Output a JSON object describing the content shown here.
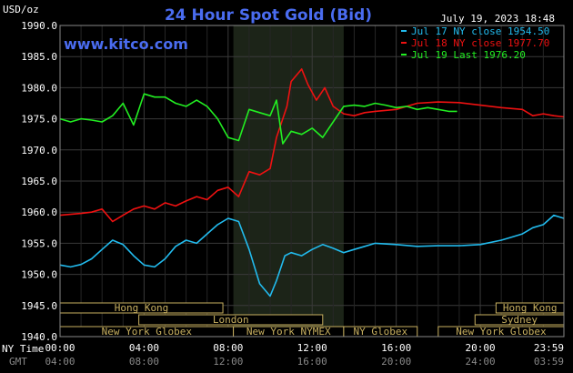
{
  "chart_data": {
    "type": "line",
    "title": "24 Hour Spot Gold (Bid)",
    "site": "www.kitco.com",
    "timestamp": "July 19, 2023 18:48",
    "ylabel": "USD/oz",
    "ylim": [
      1940.0,
      1990.0
    ],
    "yticks": [
      "1990.0",
      "1985.0",
      "1980.0",
      "1975.0",
      "1970.0",
      "1965.0",
      "1960.0",
      "1955.0",
      "1950.0",
      "1945.0",
      "1940.0"
    ],
    "x_axis_label": "NY Time",
    "x_axis2_label": "GMT",
    "xticks_ny": [
      "00:00",
      "04:00",
      "08:00",
      "12:00",
      "16:00",
      "20:00",
      "23:59"
    ],
    "xticks_gmt": [
      "04:00",
      "08:00",
      "12:00",
      "16:00",
      "20:00",
      "24:00",
      "03:59"
    ],
    "grid": true,
    "legend_position": "top-right",
    "colors": {
      "jul17": "#22bbee",
      "jul18": "#ee1111",
      "jul19": "#22ee22",
      "title": "#4a6cf0",
      "site": "#4a6cf0",
      "session": "#c8b060",
      "highlight": "#1c2418"
    },
    "series": [
      {
        "name": "Jul 17 NY close 1954.50",
        "color": "#22bbee",
        "points": [
          [
            0,
            1951.5
          ],
          [
            0.5,
            1951.2
          ],
          [
            1,
            1951.6
          ],
          [
            1.5,
            1952.5
          ],
          [
            2,
            1954.0
          ],
          [
            2.5,
            1955.5
          ],
          [
            3,
            1954.8
          ],
          [
            3.5,
            1953.0
          ],
          [
            4,
            1951.5
          ],
          [
            4.5,
            1951.2
          ],
          [
            5,
            1952.5
          ],
          [
            5.5,
            1954.5
          ],
          [
            6,
            1955.5
          ],
          [
            6.5,
            1955.0
          ],
          [
            7,
            1956.5
          ],
          [
            7.5,
            1958.0
          ],
          [
            8,
            1959.0
          ],
          [
            8.5,
            1958.5
          ],
          [
            9,
            1954.0
          ],
          [
            9.5,
            1948.5
          ],
          [
            10,
            1946.5
          ],
          [
            10.3,
            1949.0
          ],
          [
            10.7,
            1953.0
          ],
          [
            11,
            1953.5
          ],
          [
            11.5,
            1953.0
          ],
          [
            12,
            1954.0
          ],
          [
            12.5,
            1954.8
          ],
          [
            13,
            1954.2
          ],
          [
            13.5,
            1953.5
          ],
          [
            14,
            1954.0
          ],
          [
            14.5,
            1954.5
          ],
          [
            15,
            1955.0
          ],
          [
            16,
            1954.8
          ],
          [
            17,
            1954.5
          ],
          [
            18,
            1954.6
          ],
          [
            19,
            1954.6
          ],
          [
            20,
            1954.8
          ],
          [
            21,
            1955.5
          ],
          [
            21.5,
            1956.0
          ],
          [
            22,
            1956.5
          ],
          [
            22.5,
            1957.5
          ],
          [
            23,
            1958.0
          ],
          [
            23.5,
            1959.5
          ],
          [
            23.98,
            1959.0
          ]
        ]
      },
      {
        "name": "Jul 18 NY close 1977.70",
        "color": "#ee1111",
        "points": [
          [
            0,
            1959.5
          ],
          [
            1,
            1959.8
          ],
          [
            1.5,
            1960.0
          ],
          [
            2,
            1960.5
          ],
          [
            2.5,
            1958.5
          ],
          [
            3,
            1959.5
          ],
          [
            3.5,
            1960.5
          ],
          [
            4,
            1961.0
          ],
          [
            4.5,
            1960.5
          ],
          [
            5,
            1961.5
          ],
          [
            5.5,
            1961.0
          ],
          [
            6,
            1961.8
          ],
          [
            6.5,
            1962.5
          ],
          [
            7,
            1962.0
          ],
          [
            7.5,
            1963.5
          ],
          [
            8,
            1964.0
          ],
          [
            8.5,
            1962.5
          ],
          [
            9,
            1966.5
          ],
          [
            9.5,
            1966.0
          ],
          [
            10,
            1967.0
          ],
          [
            10.3,
            1972.0
          ],
          [
            10.8,
            1977.0
          ],
          [
            11,
            1981.0
          ],
          [
            11.5,
            1983.0
          ],
          [
            11.8,
            1980.5
          ],
          [
            12.2,
            1978.0
          ],
          [
            12.6,
            1980.0
          ],
          [
            13,
            1977.0
          ],
          [
            13.5,
            1975.8
          ],
          [
            14,
            1975.5
          ],
          [
            14.5,
            1976.0
          ],
          [
            15,
            1976.2
          ],
          [
            16,
            1976.5
          ],
          [
            17,
            1977.5
          ],
          [
            18,
            1977.7
          ],
          [
            19,
            1977.6
          ],
          [
            20,
            1977.2
          ],
          [
            21,
            1976.8
          ],
          [
            22,
            1976.5
          ],
          [
            22.5,
            1975.5
          ],
          [
            23,
            1975.8
          ],
          [
            23.5,
            1975.5
          ],
          [
            23.98,
            1975.3
          ]
        ]
      },
      {
        "name": "Jul 19 Last 1976.20",
        "color": "#22ee22",
        "points": [
          [
            0,
            1975.0
          ],
          [
            0.5,
            1974.5
          ],
          [
            1,
            1975.0
          ],
          [
            1.5,
            1974.8
          ],
          [
            2,
            1974.5
          ],
          [
            2.5,
            1975.5
          ],
          [
            3,
            1977.5
          ],
          [
            3.5,
            1974.0
          ],
          [
            4,
            1979.0
          ],
          [
            4.5,
            1978.5
          ],
          [
            5,
            1978.5
          ],
          [
            5.5,
            1977.5
          ],
          [
            6,
            1977.0
          ],
          [
            6.5,
            1978.0
          ],
          [
            7,
            1977.0
          ],
          [
            7.5,
            1975.0
          ],
          [
            8,
            1972.0
          ],
          [
            8.5,
            1971.5
          ],
          [
            9,
            1976.5
          ],
          [
            9.5,
            1976.0
          ],
          [
            10,
            1975.5
          ],
          [
            10.3,
            1978.0
          ],
          [
            10.6,
            1971.0
          ],
          [
            11,
            1973.0
          ],
          [
            11.5,
            1972.5
          ],
          [
            12,
            1973.5
          ],
          [
            12.5,
            1972.0
          ],
          [
            13,
            1974.5
          ],
          [
            13.5,
            1977.0
          ],
          [
            14,
            1977.2
          ],
          [
            14.5,
            1977.0
          ],
          [
            15,
            1977.5
          ],
          [
            15.5,
            1977.2
          ],
          [
            16,
            1976.8
          ],
          [
            16.5,
            1977.0
          ],
          [
            17,
            1976.5
          ],
          [
            17.5,
            1976.8
          ],
          [
            18,
            1976.5
          ],
          [
            18.5,
            1976.2
          ],
          [
            18.9,
            1976.2
          ]
        ]
      }
    ],
    "sessions": [
      {
        "name": "Hong Kong",
        "start": 0,
        "end": 7.75,
        "row": 0
      },
      {
        "name": "Hong Kong",
        "start": 20.75,
        "end": 23.98,
        "row": 0
      },
      {
        "name": "London",
        "start": 3.75,
        "end": 12.5,
        "row": 1
      },
      {
        "name": "Sydney",
        "start": 19.75,
        "end": 23.98,
        "row": 1
      },
      {
        "name": "New York Globex",
        "start": 0,
        "end": 8.25,
        "row": 2
      },
      {
        "name": "New York NYMEX",
        "start": 8.25,
        "end": 13.5,
        "row": 2
      },
      {
        "name": "NY Globex",
        "start": 13.5,
        "end": 17.0,
        "row": 2
      },
      {
        "name": "New York Globex",
        "start": 18.0,
        "end": 23.98,
        "row": 2
      }
    ],
    "highlight_range": [
      8.25,
      13.5
    ]
  }
}
